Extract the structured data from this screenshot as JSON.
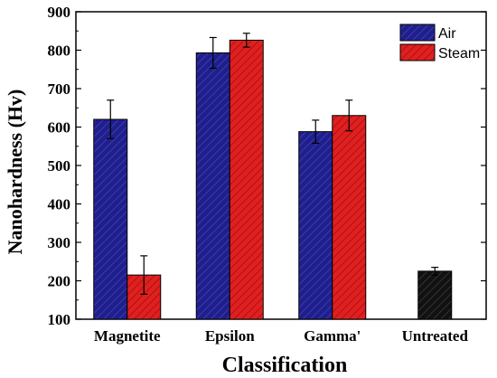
{
  "chart_data": {
    "type": "bar",
    "title": "",
    "xlabel": "Classification",
    "ylabel": "Nanohardness (Hv)",
    "ylim": [
      100,
      900
    ],
    "yticks": [
      100,
      200,
      300,
      400,
      500,
      600,
      700,
      800,
      900
    ],
    "categories": [
      "Magnetite",
      "Epsilon",
      "Gamma'",
      "Untreated"
    ],
    "series": [
      {
        "name": "Air",
        "color": "#1f1f8c",
        "values": [
          620,
          793,
          588,
          null
        ],
        "errors": [
          50,
          40,
          30,
          null
        ]
      },
      {
        "name": "Steam",
        "color": "#e02020",
        "values": [
          215,
          826,
          630,
          null
        ],
        "errors": [
          50,
          18,
          40,
          null
        ]
      },
      {
        "name": "",
        "color": "#111111",
        "values": [
          null,
          null,
          null,
          225
        ],
        "errors": [
          null,
          null,
          null,
          10
        ]
      }
    ],
    "legend": {
      "position": "top-right",
      "entries": [
        "Air",
        "Steam"
      ]
    },
    "grid": false
  }
}
